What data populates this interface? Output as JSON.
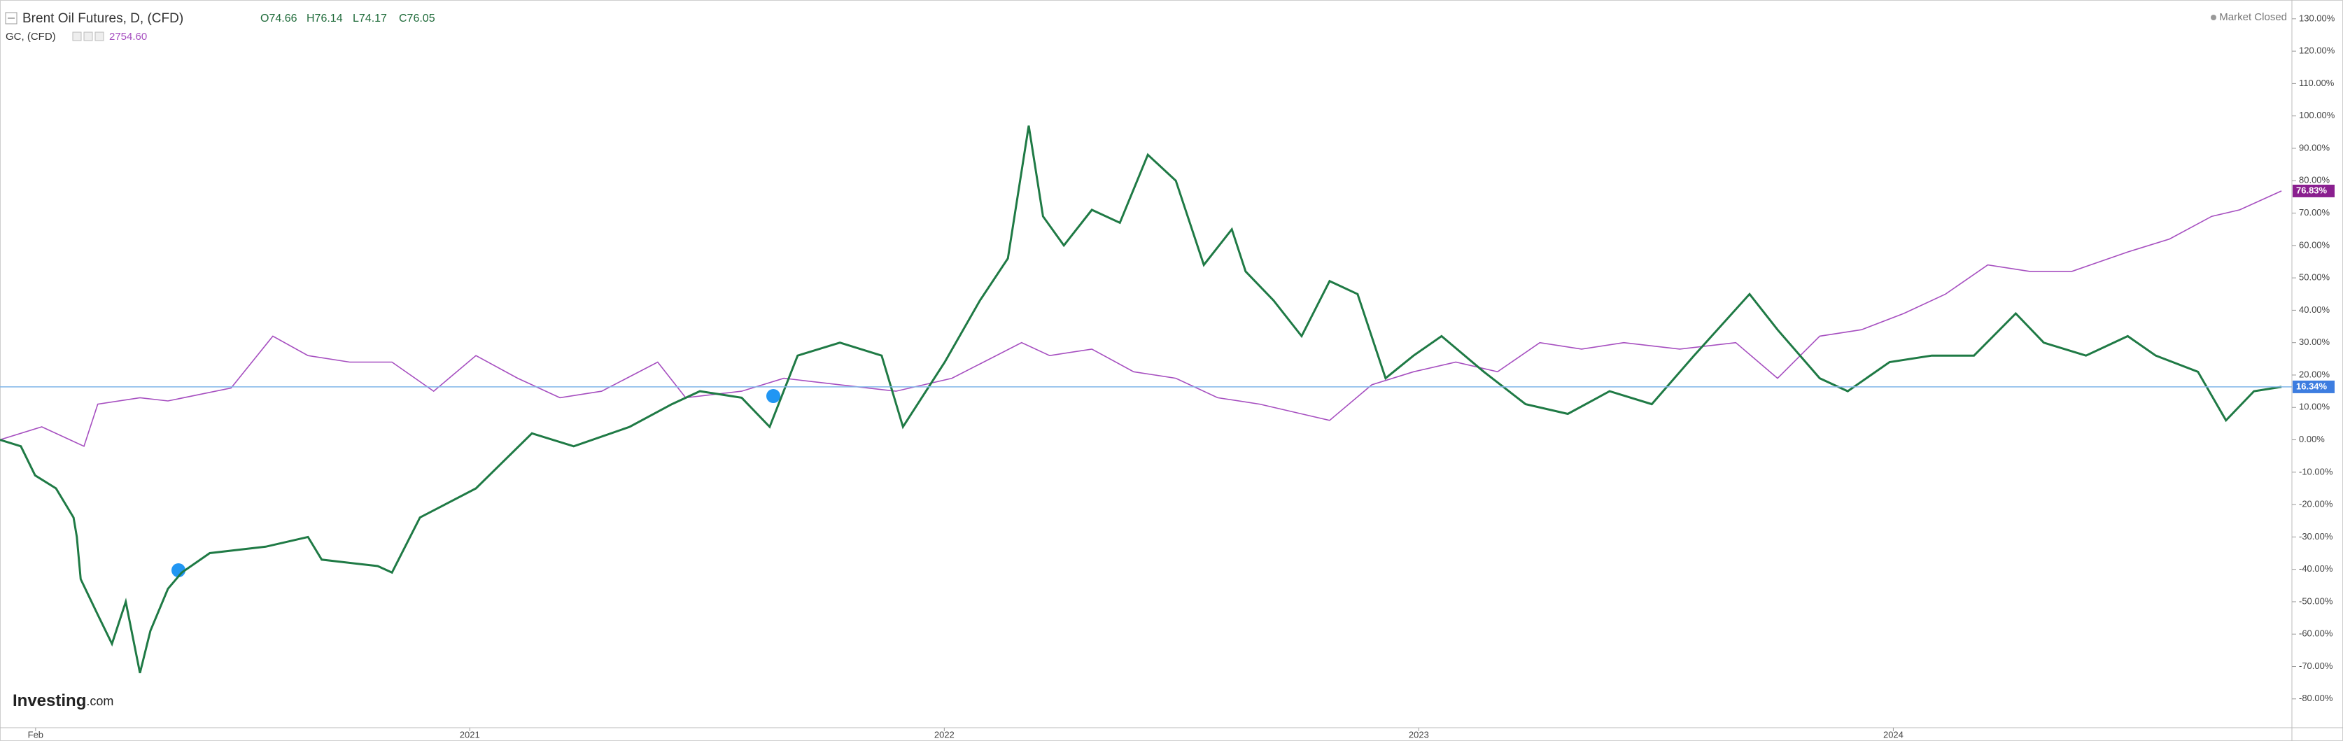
{
  "chart_data": {
    "type": "line",
    "header": {
      "icon": "⊟",
      "ohlc": [
        "O74.66",
        "H76.14",
        "L74.17",
        "C76.05"
      ],
      "gold_price": "2754.60",
      "status": "Market Closed",
      "logo": "Investing",
      "logo_suffix": ".com"
    },
    "series": [
      {
        "name": "Brent Oil Futures, D, (CFD)",
        "color": "#1f7a45",
        "x": [
          2020.01,
          2020.054,
          2020.084,
          2020.128,
          2020.165,
          2020.172,
          2020.18,
          2020.216,
          2020.246,
          2020.275,
          2020.305,
          2020.327,
          2020.364,
          2020.393,
          2020.452,
          2020.57,
          2020.659,
          2020.688,
          2020.806,
          2020.836,
          2020.895,
          2021.013,
          2021.131,
          2021.219,
          2021.337,
          2021.426,
          2021.485,
          2021.573,
          2021.632,
          2021.691,
          2021.78,
          2021.868,
          2021.913,
          2022.001,
          2022.075,
          2022.134,
          2022.178,
          2022.208,
          2022.252,
          2022.311,
          2022.37,
          2022.429,
          2022.488,
          2022.547,
          2022.606,
          2022.635,
          2022.694,
          2022.753,
          2022.812,
          2022.871,
          2022.93,
          2022.989,
          2023.048,
          2023.137,
          2023.225,
          2023.314,
          2023.402,
          2023.491,
          2023.58,
          2023.697,
          2023.756,
          2023.845,
          2023.904,
          2023.992,
          2024.081,
          2024.17,
          2024.258,
          2024.317,
          2024.406,
          2024.494,
          2024.553,
          2024.642,
          2024.701,
          2024.76,
          2024.818
        ],
        "values": [
          0,
          -2,
          -11,
          -15,
          -24,
          -30,
          -43,
          -54,
          -63,
          -50,
          -72,
          -59,
          -46,
          -41,
          -35,
          -33,
          -30,
          -37,
          -39,
          -41,
          -24,
          -15,
          2,
          -2,
          4,
          11,
          15,
          13,
          4,
          26,
          30,
          26,
          4,
          24,
          43,
          56,
          97,
          69,
          60,
          71,
          67,
          88,
          80,
          54,
          65,
          52,
          43,
          32,
          49,
          45,
          19,
          26,
          32,
          21,
          11,
          8,
          15,
          11,
          26,
          45,
          34,
          19,
          15,
          24,
          26,
          26,
          39,
          30,
          26,
          32,
          26,
          21,
          6,
          15,
          16.34
        ],
        "last_label": {
          "value": 16.34,
          "label": "16.34%"
        },
        "label_color": "#3d7de0"
      },
      {
        "name": "GC, (CFD)",
        "color": "#a64fc0",
        "x": [
          2020.01,
          2020.098,
          2020.187,
          2020.216,
          2020.305,
          2020.364,
          2020.497,
          2020.585,
          2020.659,
          2020.747,
          2020.836,
          2020.924,
          2021.013,
          2021.101,
          2021.19,
          2021.278,
          2021.396,
          2021.455,
          2021.573,
          2021.662,
          2021.78,
          2021.898,
          2022.016,
          2022.163,
          2022.222,
          2022.311,
          2022.399,
          2022.488,
          2022.576,
          2022.665,
          2022.753,
          2022.812,
          2022.901,
          2022.989,
          2023.078,
          2023.166,
          2023.255,
          2023.343,
          2023.432,
          2023.55,
          2023.668,
          2023.756,
          2023.845,
          2023.933,
          2024.022,
          2024.11,
          2024.199,
          2024.288,
          2024.376,
          2024.494,
          2024.582,
          2024.671,
          2024.73,
          2024.818
        ],
        "values": [
          0,
          4,
          -2,
          11,
          13,
          12,
          16,
          32,
          26,
          24,
          24,
          15,
          26,
          19,
          13,
          15,
          24,
          13,
          15,
          19,
          17,
          15,
          19,
          30,
          26,
          28,
          21,
          19,
          13,
          11,
          8,
          6,
          17,
          21,
          24,
          21,
          30,
          28,
          30,
          28,
          30,
          19,
          32,
          34,
          39,
          45,
          54,
          52,
          52,
          58,
          62,
          69,
          71,
          76.83
        ],
        "last_label": {
          "value": 76.83,
          "label": "76.83%"
        },
        "label_color": "#8a1f8f"
      }
    ],
    "xlim": [
      2020.01,
      2024.84
    ],
    "xticks": [
      {
        "value": 2020.085,
        "label": "Feb"
      },
      {
        "value": 2021,
        "label": "2021"
      },
      {
        "value": 2022,
        "label": "2022"
      },
      {
        "value": 2023,
        "label": "2023"
      },
      {
        "value": 2024,
        "label": "2024"
      }
    ],
    "ylim": [
      -88.9,
      135.8
    ],
    "yticks": [
      {
        "value": -80,
        "label": "-80.00%"
      },
      {
        "value": -70,
        "label": "-70.00%"
      },
      {
        "value": -60,
        "label": "-60.00%"
      },
      {
        "value": -50,
        "label": "-50.00%"
      },
      {
        "value": -40,
        "label": "-40.00%"
      },
      {
        "value": -30,
        "label": "-30.00%"
      },
      {
        "value": -20,
        "label": "-20.00%"
      },
      {
        "value": -10,
        "label": "-10.00%"
      },
      {
        "value": 0,
        "label": "0.00%"
      },
      {
        "value": 10,
        "label": "10.00%"
      },
      {
        "value": 20,
        "label": "20.00%"
      },
      {
        "value": 30,
        "label": "30.00%"
      },
      {
        "value": 40,
        "label": "40.00%"
      },
      {
        "value": 50,
        "label": "50.00%"
      },
      {
        "value": 60,
        "label": "60.00%"
      },
      {
        "value": 70,
        "label": "70.00%"
      },
      {
        "value": 80,
        "label": "80.00%"
      },
      {
        "value": 90,
        "label": "90.00%"
      },
      {
        "value": 100,
        "label": "100.00%"
      },
      {
        "value": 110,
        "label": "110.00%"
      },
      {
        "value": 120,
        "label": "120.00%"
      },
      {
        "value": 130,
        "label": "130.00%"
      }
    ]
  }
}
